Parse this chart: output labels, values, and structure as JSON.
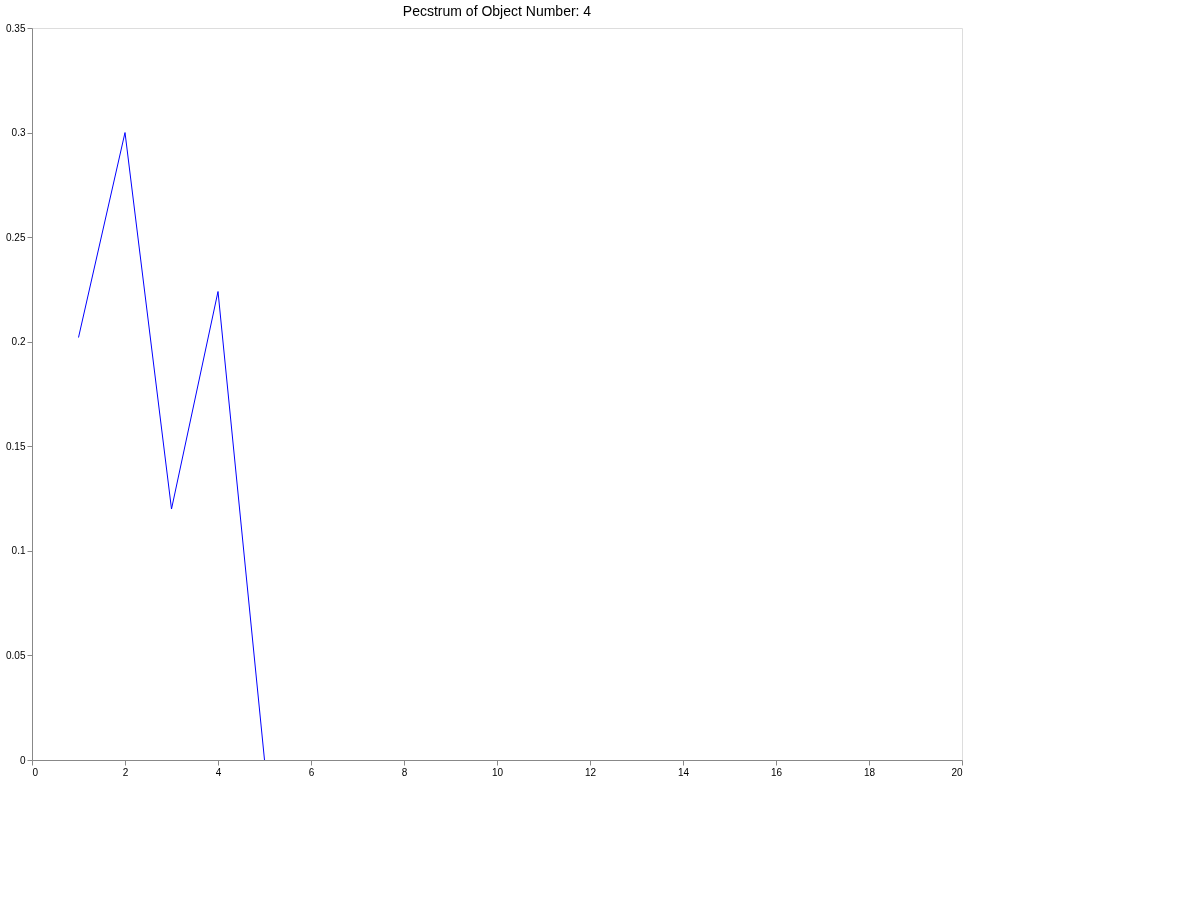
{
  "chart_data": {
    "type": "line",
    "title": "Pecstrum of Object Number: 4",
    "x": [
      1,
      2,
      3,
      4,
      5
    ],
    "series": [
      {
        "color": "#0000ff",
        "values": [
          0.202,
          0.3,
          0.12,
          0.224,
          0
        ]
      }
    ],
    "xlim": [
      0,
      20
    ],
    "xticks": [
      0,
      2,
      4,
      6,
      8,
      10,
      12,
      14,
      16,
      18,
      20
    ],
    "ylim": [
      0,
      0.35
    ],
    "yticks": [
      0,
      0.05,
      0.1,
      0.15,
      0.2,
      0.25,
      0.3,
      0.35
    ],
    "grid": false,
    "legend": false,
    "marker": "none",
    "line_style": "solid"
  }
}
